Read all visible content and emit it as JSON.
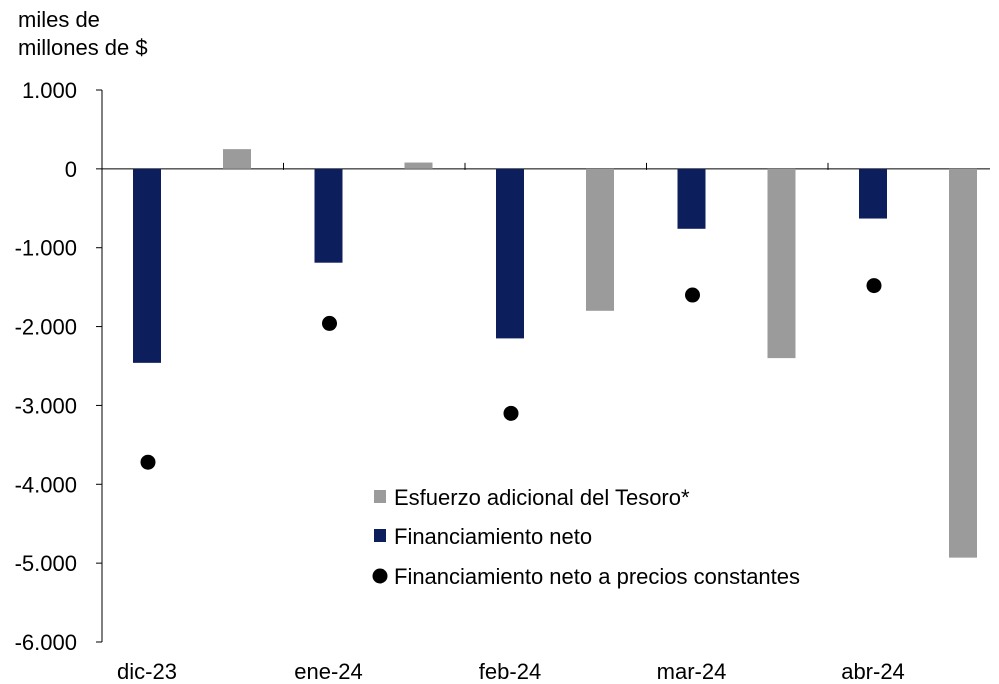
{
  "chart_data": {
    "type": "bar",
    "unit_label_line1": "miles de",
    "unit_label_line2": "millones de $",
    "categories": [
      "dic-23",
      "ene-24",
      "feb-24",
      "mar-24",
      "abr-24"
    ],
    "ylim": [
      -6000,
      1000
    ],
    "yticks": [
      1000,
      0,
      -1000,
      -2000,
      -3000,
      -4000,
      -5000,
      -6000
    ],
    "ytick_labels": [
      "1.000",
      "0",
      "-1.000",
      "-2.000",
      "-3.000",
      "-4.000",
      "-5.000",
      "-6.000"
    ],
    "series": [
      {
        "name": "Esfuerzo adicional del Tesoro*",
        "kind": "bar",
        "color": "#9b9b9b",
        "values": [
          250,
          80,
          -1800,
          -2400,
          -4930
        ]
      },
      {
        "name": "Financiamiento neto",
        "kind": "bar",
        "color": "#0c1f5c",
        "values": [
          -2460,
          -1190,
          -2150,
          -760,
          -630
        ]
      },
      {
        "name": "Financiamiento neto a precios constantes",
        "kind": "scatter",
        "color": "#000000",
        "values": [
          -3720,
          -1960,
          -3100,
          -1600,
          -1480
        ]
      }
    ],
    "legend_position": "bottom-right",
    "grid": false
  }
}
